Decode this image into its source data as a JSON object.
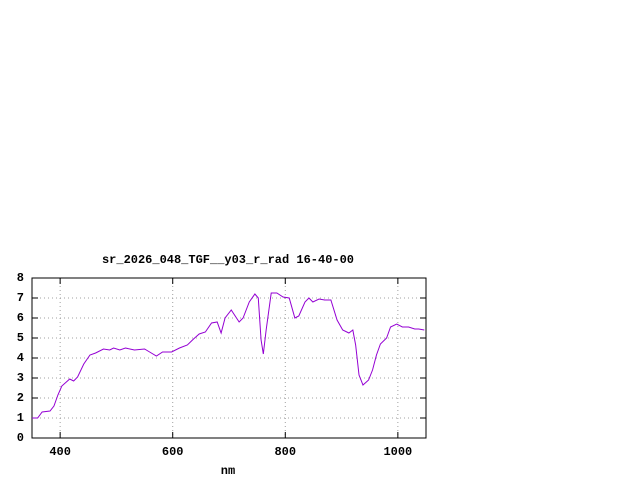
{
  "chart_data": {
    "type": "line",
    "title": "sr_2026_048_TGF__y03_r_rad 16-40-00",
    "x_label": "nm",
    "x": [
      350,
      360,
      368,
      382,
      389,
      396,
      403,
      417,
      424,
      431,
      442,
      453,
      463,
      477,
      488,
      495,
      506,
      516,
      532,
      550,
      559,
      571,
      582,
      598,
      612,
      626,
      637,
      647,
      658,
      669,
      679,
      686,
      693,
      704,
      711,
      718,
      725,
      736,
      746,
      752,
      757,
      761,
      766,
      775,
      785,
      796,
      807,
      817,
      824,
      835,
      842,
      849,
      860,
      870,
      881,
      892,
      902,
      913,
      920,
      925,
      931,
      938,
      948,
      955,
      962,
      969,
      980,
      987,
      998,
      1008,
      1019,
      1030,
      1037,
      1047
    ],
    "series": [
      {
        "color": "#9400d3",
        "values": [
          1.0,
          1.0,
          1.3,
          1.35,
          1.6,
          2.15,
          2.6,
          2.95,
          2.85,
          3.05,
          3.7,
          4.15,
          4.25,
          4.45,
          4.4,
          4.5,
          4.4,
          4.5,
          4.4,
          4.45,
          4.3,
          4.1,
          4.3,
          4.3,
          4.5,
          4.65,
          4.95,
          5.2,
          5.3,
          5.75,
          5.8,
          5.25,
          6.0,
          6.4,
          6.1,
          5.8,
          6.0,
          6.8,
          7.2,
          7.0,
          4.9,
          4.2,
          5.4,
          7.25,
          7.25,
          7.05,
          7.0,
          6.0,
          6.1,
          6.8,
          7.0,
          6.8,
          6.95,
          6.9,
          6.9,
          5.9,
          5.4,
          5.25,
          5.4,
          4.65,
          3.15,
          2.65,
          2.9,
          3.4,
          4.15,
          4.7,
          5.0,
          5.55,
          5.7,
          5.55,
          5.55,
          5.45,
          5.45,
          5.4
        ]
      }
    ],
    "xlim": [
      350,
      1050
    ],
    "xticks": [
      400,
      600,
      800,
      1000
    ],
    "ylim": [
      0,
      8
    ],
    "yticks": [
      0,
      1,
      2,
      3,
      4,
      5,
      6,
      7,
      8
    ],
    "grid": true
  }
}
